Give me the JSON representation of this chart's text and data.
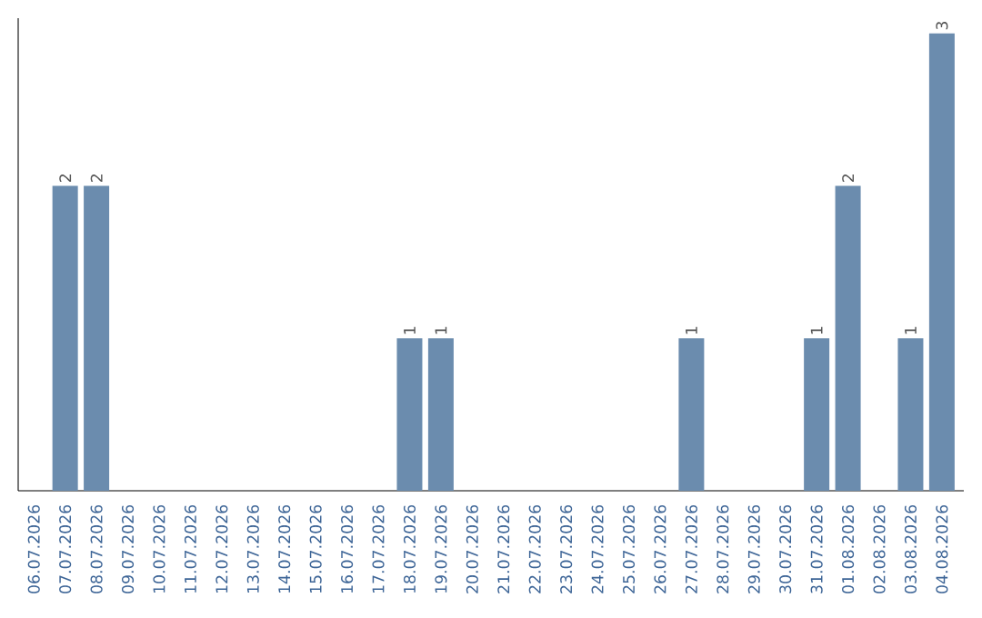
{
  "chart_data": {
    "type": "bar",
    "categories": [
      "06.07.2026",
      "07.07.2026",
      "08.07.2026",
      "09.07.2026",
      "10.07.2026",
      "11.07.2026",
      "12.07.2026",
      "13.07.2026",
      "14.07.2026",
      "15.07.2026",
      "16.07.2026",
      "17.07.2026",
      "18.07.2026",
      "19.07.2026",
      "20.07.2026",
      "21.07.2026",
      "22.07.2026",
      "23.07.2026",
      "24.07.2026",
      "25.07.2026",
      "26.07.2026",
      "27.07.2026",
      "28.07.2026",
      "29.07.2026",
      "30.07.2026",
      "31.07.2026",
      "01.08.2026",
      "02.08.2026",
      "03.08.2026",
      "04.08.2026"
    ],
    "values": [
      0,
      2,
      2,
      0,
      0,
      0,
      0,
      0,
      0,
      0,
      0,
      0,
      1,
      1,
      0,
      0,
      0,
      0,
      0,
      0,
      0,
      1,
      0,
      0,
      0,
      1,
      2,
      0,
      1,
      3
    ],
    "value_labels": [
      null,
      "2",
      "2",
      null,
      null,
      null,
      null,
      null,
      null,
      null,
      null,
      null,
      "1",
      "1",
      null,
      null,
      null,
      null,
      null,
      null,
      null,
      "1",
      null,
      null,
      null,
      "1",
      "2",
      null,
      "1",
      "3"
    ],
    "color": "#6b8cae",
    "ylim": [
      0,
      3.1
    ],
    "tick_labels": "x"
  }
}
